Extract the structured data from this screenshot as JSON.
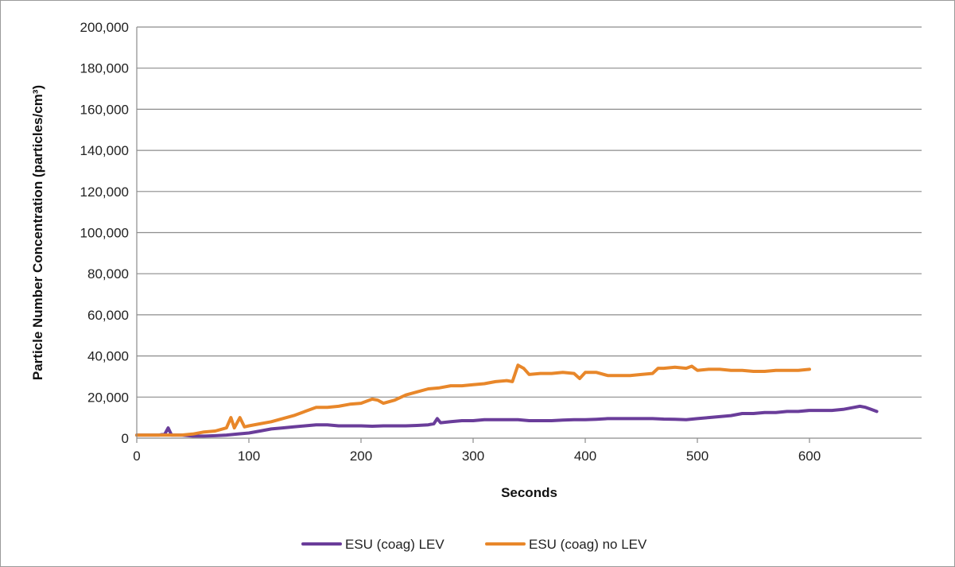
{
  "chart_data": {
    "type": "line",
    "title": "",
    "xlabel": "Seconds",
    "ylabel": "Particle Number Concentration (particles/cm³)",
    "xlim": [
      0,
      700
    ],
    "ylim": [
      0,
      200000
    ],
    "x_ticks": [
      "0",
      "100",
      "200",
      "300",
      "400",
      "500",
      "600"
    ],
    "y_ticks": [
      "0",
      "20,000",
      "40,000",
      "60,000",
      "80,000",
      "100,000",
      "120,000",
      "140,000",
      "160,000",
      "180,000",
      "200,000"
    ],
    "grid": "horizontal",
    "legend_position": "bottom",
    "series": [
      {
        "name": "ESU (coag) LEV",
        "color": "#6a3d9a",
        "points": [
          [
            0,
            1500
          ],
          [
            20,
            1500
          ],
          [
            25,
            2000
          ],
          [
            28,
            5000
          ],
          [
            31,
            1500
          ],
          [
            40,
            1500
          ],
          [
            50,
            1000
          ],
          [
            60,
            1000
          ],
          [
            70,
            1200
          ],
          [
            80,
            1500
          ],
          [
            90,
            2000
          ],
          [
            100,
            2500
          ],
          [
            110,
            3500
          ],
          [
            120,
            4500
          ],
          [
            130,
            5000
          ],
          [
            140,
            5500
          ],
          [
            150,
            6000
          ],
          [
            160,
            6500
          ],
          [
            170,
            6500
          ],
          [
            180,
            6000
          ],
          [
            190,
            6000
          ],
          [
            200,
            6000
          ],
          [
            210,
            5800
          ],
          [
            220,
            6000
          ],
          [
            230,
            6000
          ],
          [
            240,
            6000
          ],
          [
            250,
            6200
          ],
          [
            260,
            6500
          ],
          [
            265,
            7000
          ],
          [
            268,
            9500
          ],
          [
            271,
            7500
          ],
          [
            280,
            8000
          ],
          [
            290,
            8500
          ],
          [
            300,
            8500
          ],
          [
            310,
            9000
          ],
          [
            320,
            9000
          ],
          [
            330,
            9000
          ],
          [
            340,
            9000
          ],
          [
            350,
            8500
          ],
          [
            360,
            8500
          ],
          [
            370,
            8500
          ],
          [
            380,
            8800
          ],
          [
            390,
            9000
          ],
          [
            400,
            9000
          ],
          [
            410,
            9200
          ],
          [
            420,
            9500
          ],
          [
            430,
            9500
          ],
          [
            440,
            9500
          ],
          [
            450,
            9500
          ],
          [
            460,
            9500
          ],
          [
            470,
            9300
          ],
          [
            480,
            9200
          ],
          [
            490,
            9000
          ],
          [
            500,
            9500
          ],
          [
            510,
            10000
          ],
          [
            520,
            10500
          ],
          [
            530,
            11000
          ],
          [
            540,
            12000
          ],
          [
            550,
            12000
          ],
          [
            560,
            12500
          ],
          [
            570,
            12500
          ],
          [
            580,
            13000
          ],
          [
            590,
            13000
          ],
          [
            600,
            13500
          ],
          [
            610,
            13500
          ],
          [
            620,
            13500
          ],
          [
            630,
            14000
          ],
          [
            640,
            15000
          ],
          [
            645,
            15500
          ],
          [
            650,
            15000
          ],
          [
            655,
            14000
          ],
          [
            660,
            13000
          ]
        ]
      },
      {
        "name": "ESU (coag) no LEV",
        "color": "#e8872a",
        "points": [
          [
            0,
            1500
          ],
          [
            20,
            1500
          ],
          [
            40,
            1500
          ],
          [
            50,
            2000
          ],
          [
            60,
            3000
          ],
          [
            70,
            3500
          ],
          [
            80,
            5000
          ],
          [
            84,
            10000
          ],
          [
            87,
            5000
          ],
          [
            92,
            10000
          ],
          [
            96,
            5500
          ],
          [
            100,
            6000
          ],
          [
            110,
            7000
          ],
          [
            120,
            8000
          ],
          [
            130,
            9500
          ],
          [
            140,
            11000
          ],
          [
            150,
            13000
          ],
          [
            160,
            15000
          ],
          [
            170,
            15000
          ],
          [
            180,
            15500
          ],
          [
            190,
            16500
          ],
          [
            200,
            17000
          ],
          [
            210,
            19000
          ],
          [
            215,
            18500
          ],
          [
            220,
            17000
          ],
          [
            230,
            18500
          ],
          [
            240,
            21000
          ],
          [
            250,
            22500
          ],
          [
            260,
            24000
          ],
          [
            270,
            24500
          ],
          [
            280,
            25500
          ],
          [
            290,
            25500
          ],
          [
            300,
            26000
          ],
          [
            310,
            26500
          ],
          [
            320,
            27500
          ],
          [
            330,
            28000
          ],
          [
            335,
            27500
          ],
          [
            340,
            35500
          ],
          [
            345,
            34000
          ],
          [
            350,
            31000
          ],
          [
            360,
            31500
          ],
          [
            370,
            31500
          ],
          [
            380,
            32000
          ],
          [
            390,
            31500
          ],
          [
            395,
            29000
          ],
          [
            400,
            32000
          ],
          [
            410,
            32000
          ],
          [
            420,
            30500
          ],
          [
            430,
            30500
          ],
          [
            440,
            30500
          ],
          [
            450,
            31000
          ],
          [
            460,
            31500
          ],
          [
            465,
            34000
          ],
          [
            470,
            34000
          ],
          [
            480,
            34500
          ],
          [
            490,
            34000
          ],
          [
            495,
            35000
          ],
          [
            500,
            33000
          ],
          [
            510,
            33500
          ],
          [
            520,
            33500
          ],
          [
            530,
            33000
          ],
          [
            540,
            33000
          ],
          [
            550,
            32500
          ],
          [
            560,
            32500
          ],
          [
            570,
            33000
          ],
          [
            580,
            33000
          ],
          [
            590,
            33000
          ],
          [
            600,
            33500
          ]
        ]
      }
    ]
  }
}
